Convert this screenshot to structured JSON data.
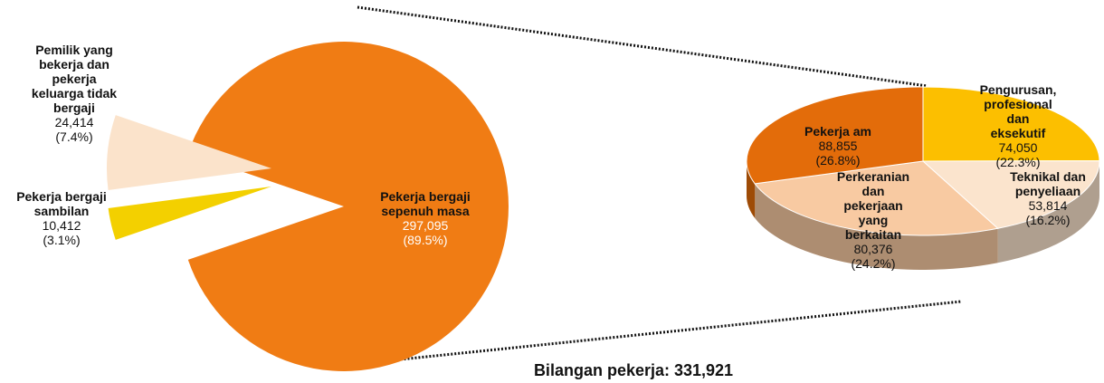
{
  "chart_data": [
    {
      "type": "pie",
      "categories": [
        "Pekerja bergaji sepenuh masa",
        "Pekerja bergaji sambilan",
        "Pemilik yang bekerja dan pekerja keluarga tidak bergaji"
      ],
      "values": [
        297095,
        10412,
        24414
      ],
      "value_labels": [
        "297,095",
        "10,412",
        "24,414"
      ],
      "percents": [
        89.5,
        3.1,
        7.4
      ],
      "percent_labels": [
        "(89.5%)",
        "(3.1%)",
        "(7.4%)"
      ],
      "colors": [
        "#f07c14",
        "#f3d000",
        "#fbe3cb"
      ]
    },
    {
      "type": "pie3d",
      "categories": [
        "Pengurusan, profesional dan eksekutif",
        "Teknikal dan penyeliaan",
        "Perkeranian dan pekerjaan yang berkaitan",
        "Pekerja am"
      ],
      "values": [
        74050,
        53814,
        80376,
        88855
      ],
      "value_labels": [
        "74,050",
        "53,814",
        "80,376",
        "88,855"
      ],
      "percents": [
        22.3,
        16.2,
        24.2,
        26.8
      ],
      "percent_labels": [
        "(22.3%)",
        "(16.2%)",
        "(24.2%)",
        "(26.8%)"
      ],
      "colors": [
        "#fcbf00",
        "#fbe4cd",
        "#f8caa2",
        "#e36c0a"
      ]
    }
  ],
  "footer": "Bilangan pekerja: 331,921"
}
